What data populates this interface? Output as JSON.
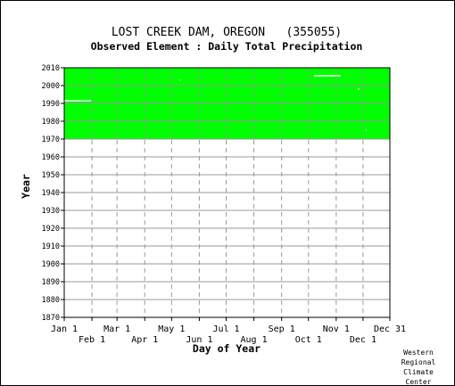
{
  "chart_data": {
    "type": "heatmap",
    "title": "LOST CREEK DAM, OREGON   (355055)",
    "subtitle": "Observed Element : Daily Total Precipitation",
    "xlabel": "Day of Year",
    "ylabel": "Year",
    "x_range": [
      1,
      365
    ],
    "ylim": [
      1870,
      2010
    ],
    "y_ticks": [
      1870,
      1880,
      1890,
      1900,
      1910,
      1920,
      1930,
      1940,
      1950,
      1960,
      1970,
      1980,
      1990,
      2000,
      2010
    ],
    "x_ticks_top": [
      {
        "label": "Jan 1",
        "day": 1
      },
      {
        "label": "Mar 1",
        "day": 60
      },
      {
        "label": "May 1",
        "day": 121
      },
      {
        "label": "Jul 1",
        "day": 182
      },
      {
        "label": "Sep 1",
        "day": 244
      },
      {
        "label": "Nov 1",
        "day": 305
      },
      {
        "label": "Dec 31",
        "day": 365
      }
    ],
    "x_ticks_bottom": [
      {
        "label": "Feb 1",
        "day": 32
      },
      {
        "label": "Apr 1",
        "day": 91
      },
      {
        "label": "Jun 1",
        "day": 152
      },
      {
        "label": "Aug 1",
        "day": 213
      },
      {
        "label": "Oct 1",
        "day": 274
      },
      {
        "label": "Dec 1",
        "day": 335
      }
    ],
    "grid": true,
    "data_color": "#00ff00",
    "data_coverage": {
      "year_start": 1970,
      "year_end": 2010,
      "day_start": 1,
      "day_end": 365
    },
    "missing_segments": [
      {
        "year": 1991.5,
        "day_start": 1,
        "day_end": 31
      },
      {
        "year": 2005.5,
        "day_start": 280,
        "day_end": 310
      },
      {
        "year": 1998,
        "day_start": 329,
        "day_end": 331
      },
      {
        "year": 2003,
        "day_start": 130,
        "day_end": 131
      },
      {
        "year": 1975,
        "day_start": 338,
        "day_end": 339
      }
    ]
  },
  "credit": [
    "Western",
    "Regional",
    "Climate",
    "Center"
  ]
}
